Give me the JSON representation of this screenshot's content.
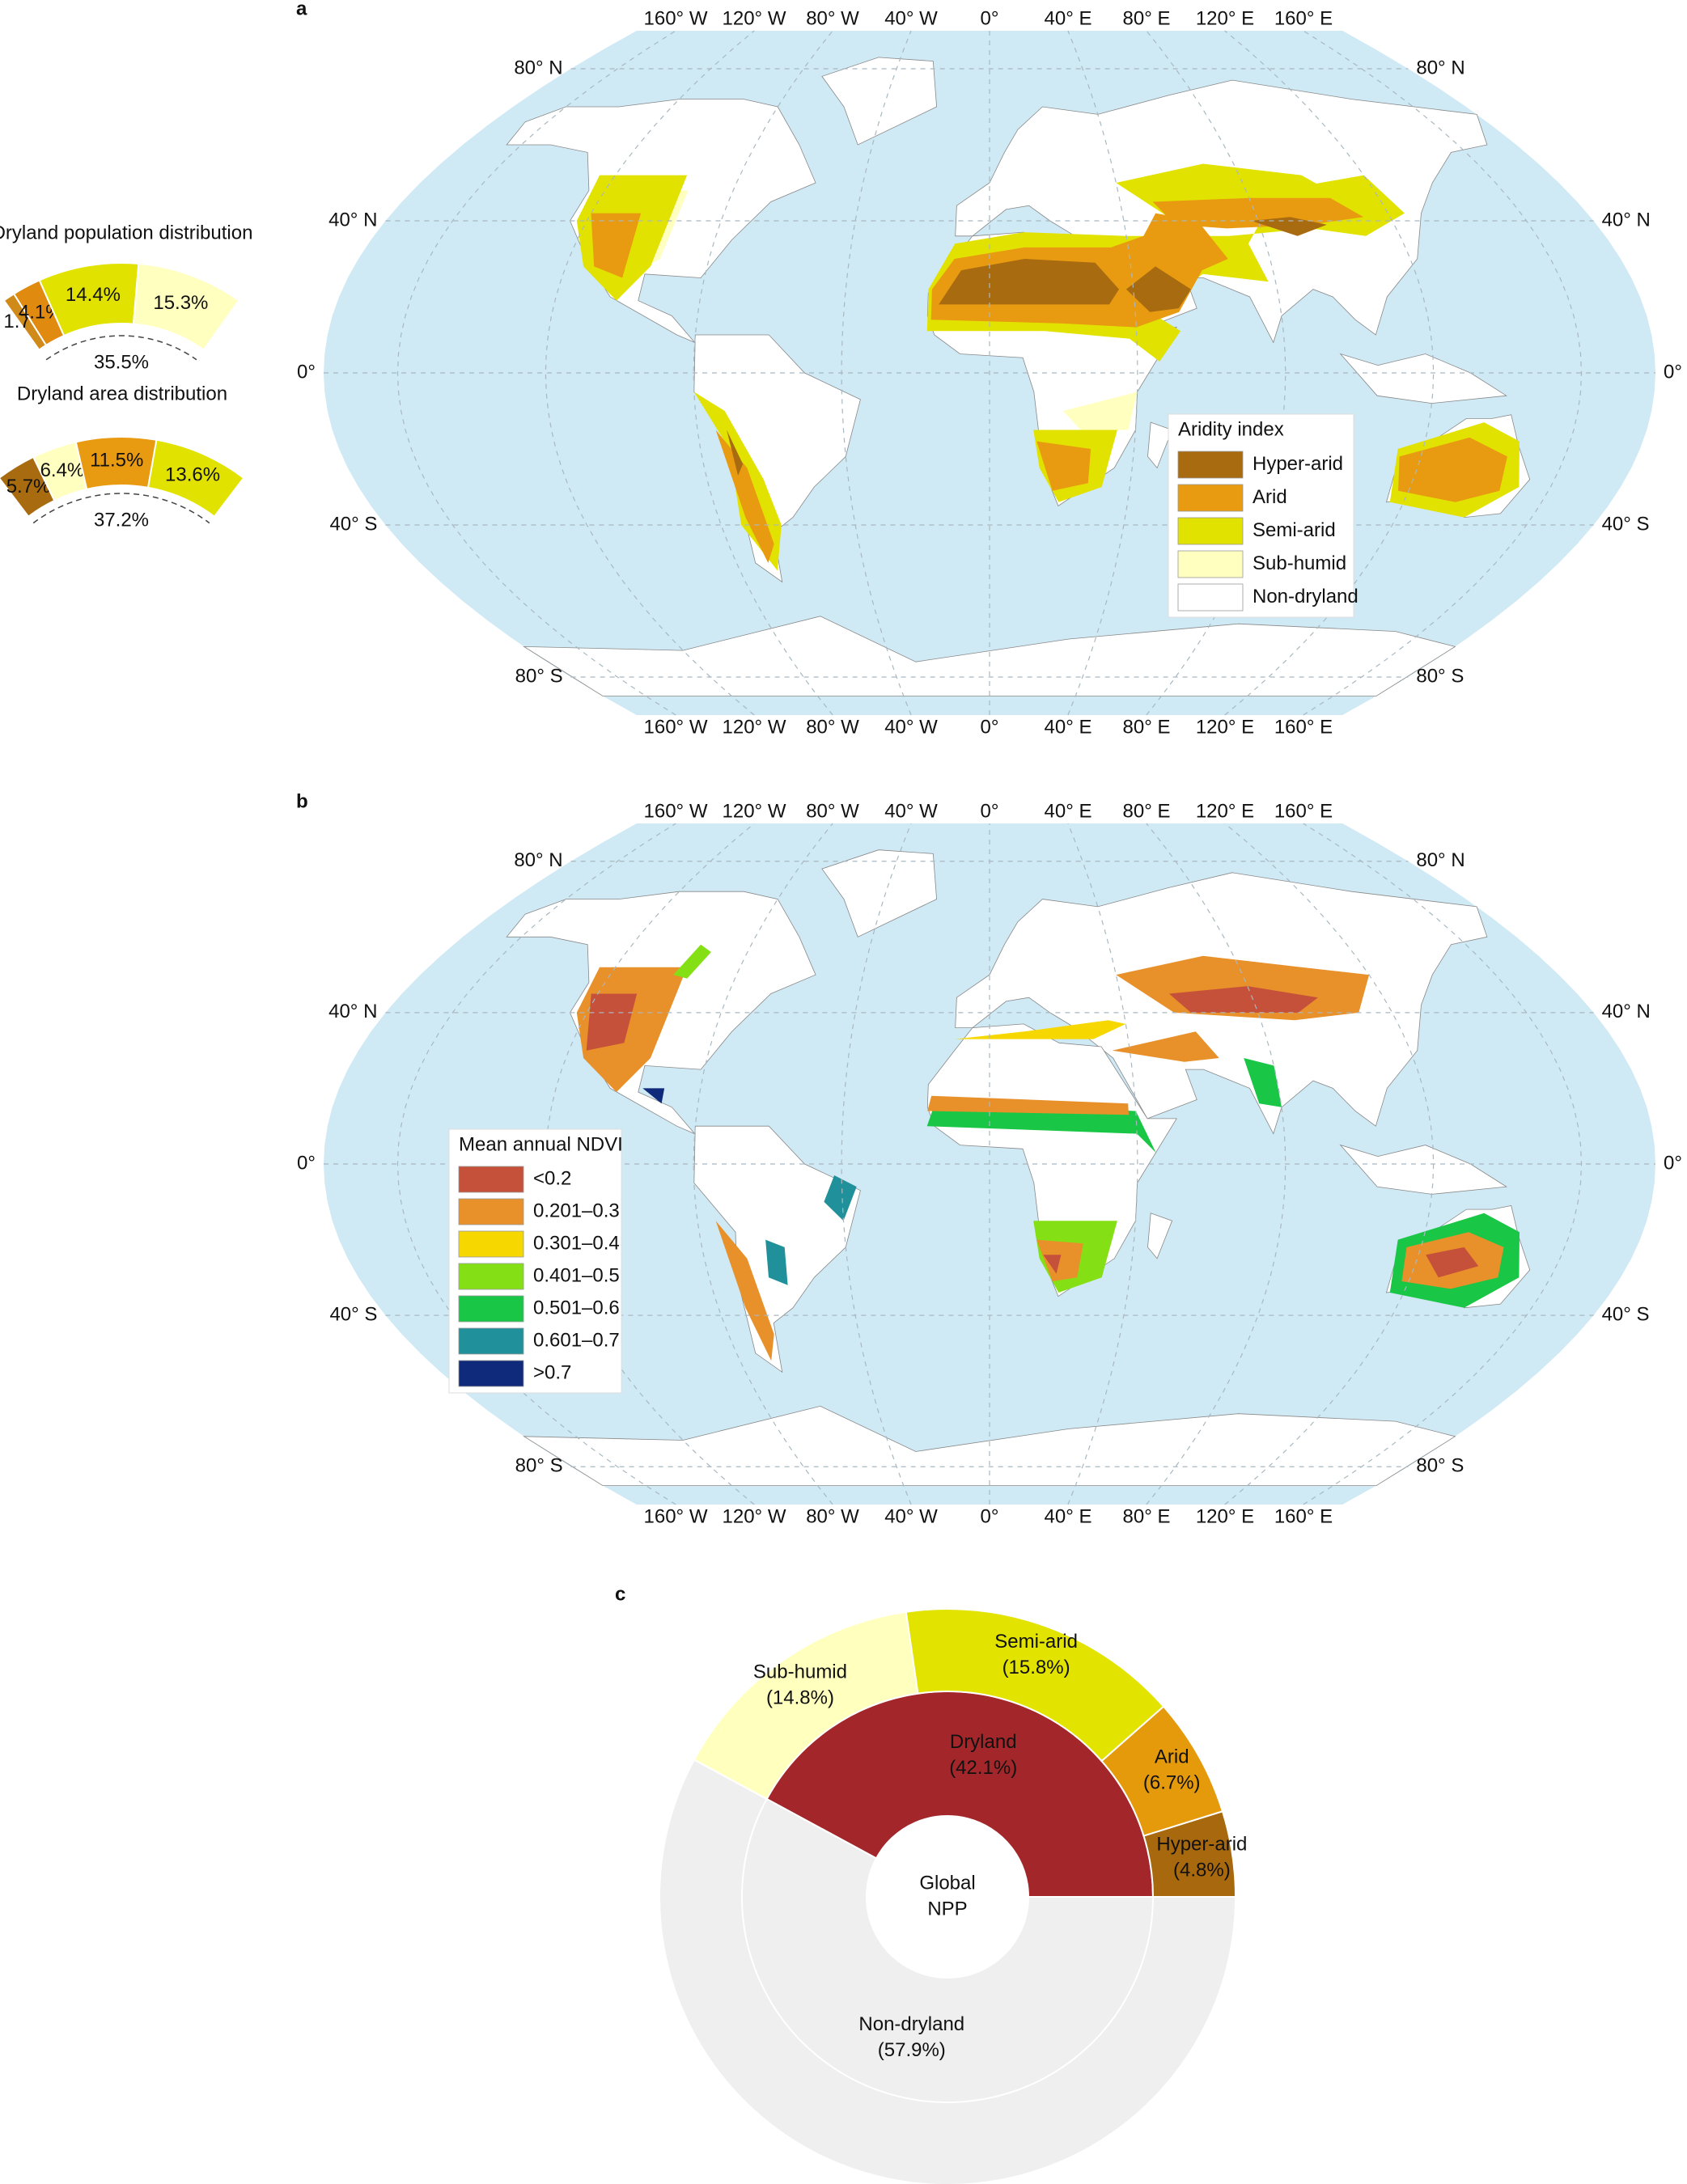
{
  "panels": [
    {
      "label": "a",
      "lat_labels": [
        "80° N",
        "40° N",
        "0°",
        "40° S",
        "80° S"
      ],
      "lon_labels": [
        "160° W",
        "120° W",
        "80° W",
        "40° W",
        "0°",
        "40° E",
        "80° E",
        "120° E",
        "160° E"
      ],
      "legend": {
        "title": "Aridity index",
        "items": [
          {
            "label": "Hyper-arid",
            "color": "#a86b10"
          },
          {
            "label": "Arid",
            "color": "#e89a10"
          },
          {
            "label": "Semi-arid",
            "color": "#e2e200"
          },
          {
            "label": "Sub-humid",
            "color": "#ffffc0"
          },
          {
            "label": "Non-dryland",
            "color": "#ffffff"
          }
        ]
      }
    },
    {
      "label": "b",
      "lat_labels": [
        "80° N",
        "40° N",
        "0°",
        "40° S",
        "80° S"
      ],
      "lon_labels": [
        "160° W",
        "120° W",
        "80° W",
        "40° W",
        "0°",
        "40° E",
        "80° E",
        "120° E",
        "160° E"
      ],
      "legend": {
        "title": "Mean annual NDVI",
        "items": [
          {
            "label": "<0.2",
            "color": "#c6513a"
          },
          {
            "label": "0.201–0.3",
            "color": "#e8902a"
          },
          {
            "label": "0.301–0.4",
            "color": "#f6d800"
          },
          {
            "label": "0.401–0.5",
            "color": "#84e014"
          },
          {
            "label": "0.501–0.6",
            "color": "#19c646"
          },
          {
            "label": "0.601–0.7",
            "color": "#20909a"
          },
          {
            "label": ">0.7",
            "color": "#0f2a7a"
          }
        ]
      }
    }
  ],
  "chart_data": [
    {
      "type": "arc",
      "title": "Dryland population distribution",
      "values": [
        1.7,
        4.1,
        14.4,
        15.3
      ],
      "value_labels": [
        "1.7%",
        "4.1%",
        "14.4%",
        "15.3%"
      ],
      "colors": [
        "#d08a1a",
        "#e08a10",
        "#e2e200",
        "#ffffc0"
      ],
      "total": 35.5,
      "total_label": "35.5%"
    },
    {
      "type": "arc",
      "title": "Dryland area distribution",
      "values": [
        5.7,
        6.4,
        11.5,
        13.6
      ],
      "value_labels": [
        "5.7%",
        "6.4%",
        "11.5%",
        "13.6%"
      ],
      "colors": [
        "#a86b10",
        "#ffffc0",
        "#e89a10",
        "#e2e200"
      ],
      "total": 37.2,
      "total_label": "37.2%"
    },
    {
      "type": "sunburst",
      "panel_label": "c",
      "center_label": [
        "Global",
        "NPP"
      ],
      "rings": [
        {
          "categories": [
            "Dryland",
            "Non-dryland"
          ],
          "values": [
            42.1,
            57.9
          ],
          "value_labels": [
            "(42.1%)",
            "(57.9%)"
          ],
          "colors": [
            "#a3272a",
            "#efefef"
          ]
        },
        {
          "categories": [
            "Hyper-arid",
            "Arid",
            "Semi-arid",
            "Sub-humid"
          ],
          "values": [
            4.8,
            6.7,
            15.8,
            14.8
          ],
          "value_labels": [
            "(4.8%)",
            "(6.7%)",
            "(15.8%)",
            "(14.8%)"
          ],
          "colors": [
            "#a8690e",
            "#e59a0c",
            "#e3e300",
            "#ffffbe"
          ]
        }
      ]
    }
  ]
}
